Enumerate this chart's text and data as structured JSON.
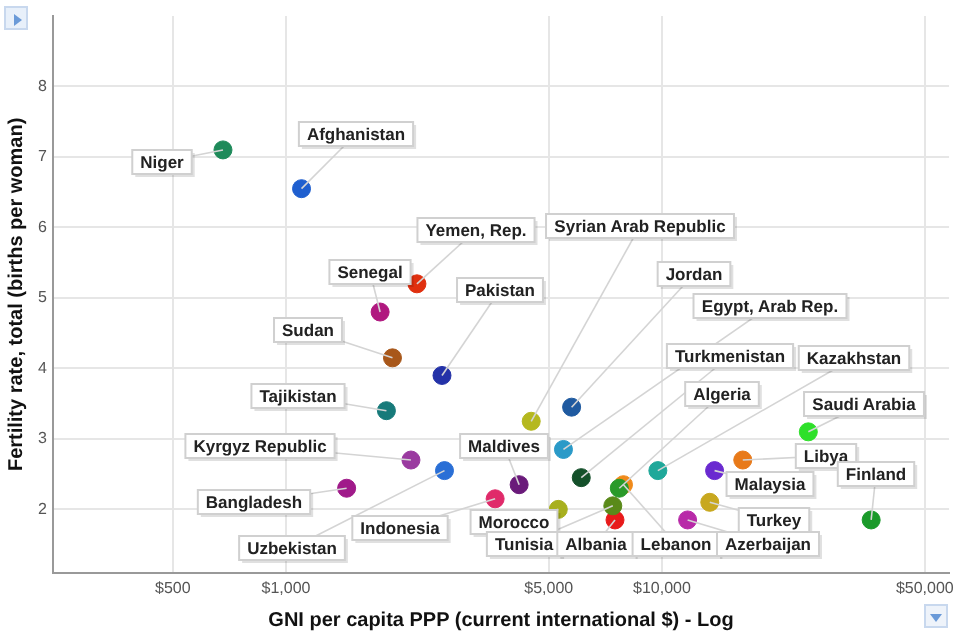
{
  "chart_data": {
    "type": "scatter",
    "xlabel": "GNI per capita PPP (current international $) - Log",
    "ylabel": "Fertility rate, total (births per woman)",
    "log": "x",
    "xlim": [
      240,
      58000
    ],
    "ylim": [
      1.1,
      9
    ],
    "xticks": [
      {
        "value": 500,
        "label": "$500"
      },
      {
        "value": 1000,
        "label": "$1,000"
      },
      {
        "value": 5000,
        "label": "$5,000"
      },
      {
        "value": 10000,
        "label": "$10,000"
      },
      {
        "value": 50000,
        "label": "$50,000"
      }
    ],
    "yticks": [
      2,
      3,
      4,
      5,
      6,
      7,
      8
    ],
    "grid": true,
    "legend": false,
    "marker": "circle",
    "series": [
      {
        "name": "Niger",
        "color": "#1e8a5a",
        "x": [
          680
        ],
        "values": [
          7.1
        ]
      },
      {
        "name": "Afghanistan",
        "color": "#1f5fcf",
        "x": [
          1100
        ],
        "values": [
          6.55
        ]
      },
      {
        "name": "Yemen, Rep.",
        "color": "#e0300f",
        "x": [
          2230
        ],
        "values": [
          5.2
        ]
      },
      {
        "name": "Senegal",
        "color": "#b0187f",
        "x": [
          1780
        ],
        "values": [
          4.8
        ]
      },
      {
        "name": "Pakistan",
        "color": "#2432a8",
        "x": [
          2600
        ],
        "values": [
          3.9
        ]
      },
      {
        "name": "Sudan",
        "color": "#a8571a",
        "x": [
          1920
        ],
        "values": [
          4.15
        ]
      },
      {
        "name": "Tajikistan",
        "color": "#177a7a",
        "x": [
          1850
        ],
        "values": [
          3.4
        ]
      },
      {
        "name": "Kyrgyz Republic",
        "color": "#9a3aa0",
        "x": [
          2150
        ],
        "values": [
          2.7
        ]
      },
      {
        "name": "Bangladesh",
        "color": "#a01a8a",
        "x": [
          1450
        ],
        "values": [
          2.3
        ]
      },
      {
        "name": "Uzbekistan",
        "color": "#2a6fd6",
        "x": [
          2640
        ],
        "values": [
          2.55
        ]
      },
      {
        "name": "Syrian Arab Republic",
        "color": "#b5b81f",
        "x": [
          4490
        ],
        "values": [
          3.25
        ]
      },
      {
        "name": "Jordan",
        "color": "#1f5aa0",
        "x": [
          5750
        ],
        "values": [
          3.45
        ]
      },
      {
        "name": "Egypt, Arab Rep.",
        "color": "#2a9ac8",
        "x": [
          5470
        ],
        "values": [
          2.85
        ]
      },
      {
        "name": "Turkmenistan",
        "color": "#14502a",
        "x": [
          6100
        ],
        "values": [
          2.45
        ]
      },
      {
        "name": "Kazakhstan",
        "color": "#1fa89a",
        "x": [
          9750
        ],
        "values": [
          2.55
        ]
      },
      {
        "name": "Algeria",
        "color": "#2a9a2a",
        "x": [
          7700
        ],
        "values": [
          2.3
        ]
      },
      {
        "name": "Saudi Arabia",
        "color": "#2ee02a",
        "x": [
          24500
        ],
        "values": [
          3.1
        ]
      },
      {
        "name": "Libya",
        "color": "#e87a1a",
        "x": [
          16400
        ],
        "values": [
          2.7
        ]
      },
      {
        "name": "Malaysia",
        "color": "#6a2ad0",
        "x": [
          13800
        ],
        "values": [
          2.55
        ]
      },
      {
        "name": "Finland",
        "color": "#1a9a2a",
        "x": [
          36000
        ],
        "values": [
          1.85
        ]
      },
      {
        "name": "Turkey",
        "color": "#c8a81f",
        "x": [
          13400
        ],
        "values": [
          2.1
        ]
      },
      {
        "name": "Maldives",
        "color": "#6a1a7a",
        "x": [
          4170
        ],
        "values": [
          2.35
        ]
      },
      {
        "name": "Indonesia",
        "color": "#e02a6a",
        "x": [
          3600
        ],
        "values": [
          2.15
        ]
      },
      {
        "name": "Morocco",
        "color": "#a8b01f",
        "x": [
          5300
        ],
        "values": [
          2.0
        ]
      },
      {
        "name": "Tunisia",
        "color": "#5a8a1a",
        "x": [
          7400
        ],
        "values": [
          2.05
        ]
      },
      {
        "name": "Albania",
        "color": "#e81a1a",
        "x": [
          7500
        ],
        "values": [
          1.85
        ]
      },
      {
        "name": "Lebanon",
        "color": "#f08a1a",
        "x": [
          7900
        ],
        "values": [
          2.35
        ]
      },
      {
        "name": "Azerbaijan",
        "color": "#b82aa8",
        "x": [
          11700
        ],
        "values": [
          1.85
        ]
      }
    ]
  }
}
